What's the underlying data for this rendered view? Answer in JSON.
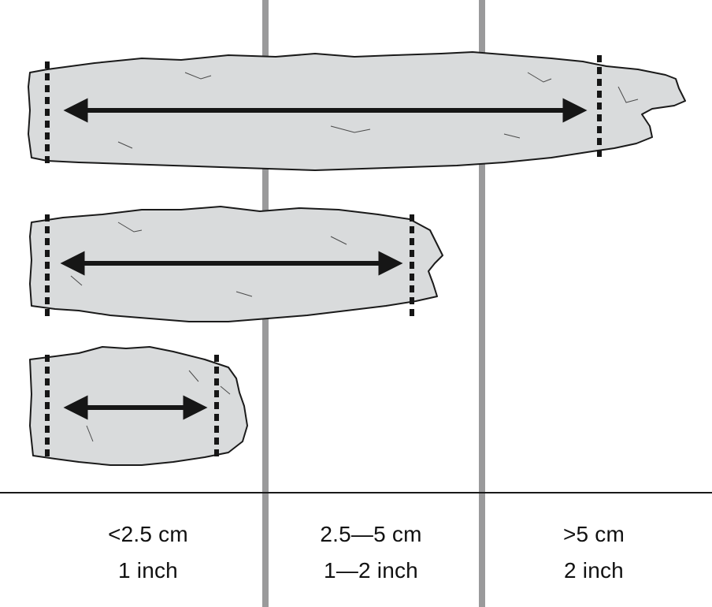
{
  "colors": {
    "divider": "#9a9a9b",
    "baseline": "#1a1a1a",
    "specimen_fill": "#d9dbdc",
    "specimen_stroke": "#1a1a1a",
    "arrow": "#161616",
    "text": "#111111"
  },
  "categories": [
    {
      "cm": "<2.5 cm",
      "inch": "1 inch"
    },
    {
      "cm": "2.5—5 cm",
      "inch": "1—2 inch"
    },
    {
      "cm": ">5 cm",
      "inch": "2 inch"
    }
  ],
  "specimens": [
    {
      "name": "long",
      "length_class": ">5 cm"
    },
    {
      "name": "medium",
      "length_class": "2.5—5 cm"
    },
    {
      "name": "short",
      "length_class": "<2.5 cm"
    }
  ]
}
